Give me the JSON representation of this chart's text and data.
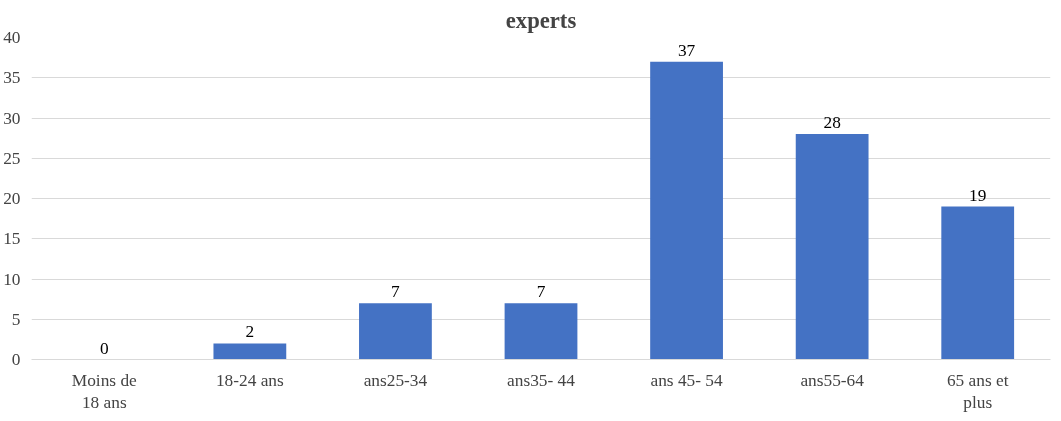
{
  "chart_data": {
    "type": "bar",
    "title": "experts",
    "categories": [
      "Moins de 18 ans",
      "18-24 ans",
      "ans25-34",
      "ans35- 44",
      "ans 45- 54",
      "ans55-64",
      "65 ans et plus"
    ],
    "values": [
      0,
      2,
      7,
      7,
      37,
      28,
      19
    ],
    "color": "#4472c4",
    "ylim": [
      0,
      40
    ],
    "yticks": [
      0,
      5,
      10,
      15,
      20,
      25,
      30,
      35,
      40
    ],
    "grid": "y",
    "data_labels": true
  }
}
